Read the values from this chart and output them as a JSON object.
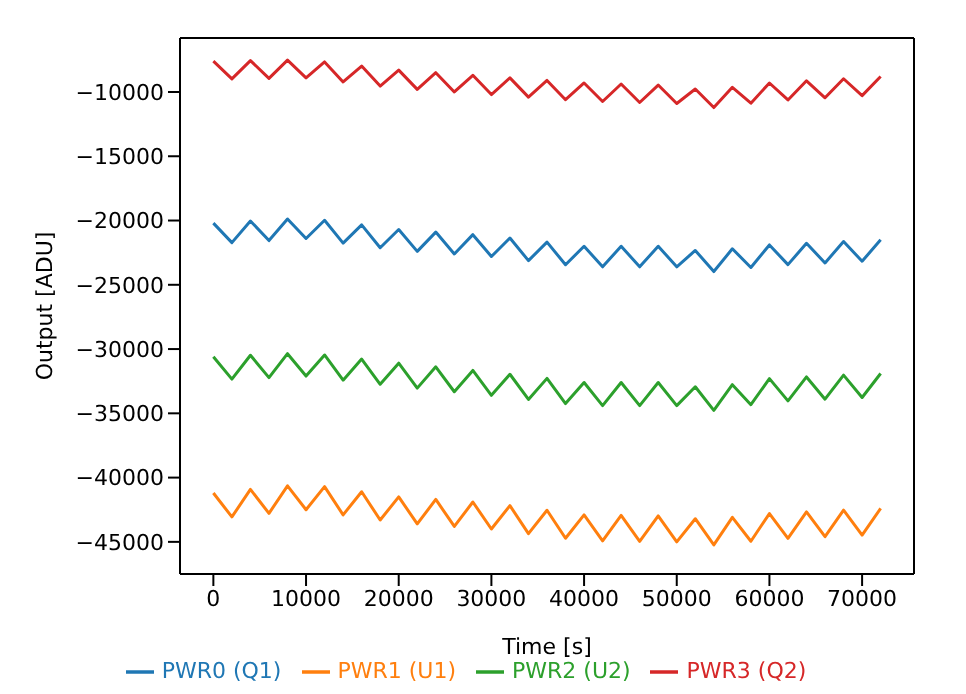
{
  "chart_data": {
    "type": "line",
    "xlabel": "Time [s]",
    "ylabel": "Output [ADU]",
    "x": [
      0,
      2000,
      4000,
      6000,
      8000,
      10000,
      12000,
      14000,
      16000,
      18000,
      20000,
      22000,
      24000,
      26000,
      28000,
      30000,
      32000,
      34000,
      36000,
      38000,
      40000,
      42000,
      44000,
      46000,
      48000,
      50000,
      52000,
      54000,
      56000,
      58000,
      60000,
      62000,
      64000,
      66000,
      68000,
      70000,
      72000
    ],
    "series": [
      {
        "name": "PWR0 (Q1)",
        "color": "#1f77b4",
        "values": [
          -20200,
          -21720,
          -20040,
          -21560,
          -19880,
          -21400,
          -19980,
          -21760,
          -20340,
          -22120,
          -20700,
          -22400,
          -20900,
          -22600,
          -21100,
          -22800,
          -21360,
          -23120,
          -21680,
          -23440,
          -22000,
          -23600,
          -22000,
          -23600,
          -22000,
          -23600,
          -22330,
          -23970,
          -22200,
          -23650,
          -21900,
          -23430,
          -21770,
          -23300,
          -21630,
          -23170,
          -21500
        ]
      },
      {
        "name": "PWR1 (U1)",
        "color": "#ff7f0e",
        "values": [
          -41200,
          -43060,
          -40920,
          -42780,
          -40640,
          -42500,
          -40700,
          -42900,
          -41100,
          -43300,
          -41500,
          -43600,
          -41700,
          -43800,
          -41900,
          -44000,
          -42180,
          -44360,
          -42540,
          -44720,
          -42900,
          -44920,
          -42940,
          -44960,
          -42980,
          -45000,
          -43200,
          -45240,
          -43090,
          -44950,
          -42800,
          -44730,
          -42670,
          -44600,
          -42530,
          -44470,
          -42400
        ]
      },
      {
        "name": "PWR2 (U2)",
        "color": "#2ca02c",
        "values": [
          -30600,
          -32340,
          -30480,
          -32220,
          -30360,
          -32100,
          -30460,
          -32420,
          -30780,
          -32740,
          -31100,
          -33040,
          -31380,
          -33320,
          -31660,
          -33600,
          -31960,
          -33920,
          -32280,
          -34240,
          -32600,
          -34400,
          -32600,
          -34400,
          -32600,
          -34400,
          -32930,
          -34770,
          -32770,
          -34330,
          -32300,
          -34030,
          -32170,
          -33900,
          -32030,
          -33770,
          -31900
        ]
      },
      {
        "name": "PWR3 (Q2)",
        "color": "#d62728",
        "values": [
          -7600,
          -8980,
          -7560,
          -8940,
          -7520,
          -8900,
          -7660,
          -9220,
          -7980,
          -9540,
          -8300,
          -9800,
          -8500,
          -10000,
          -8700,
          -10200,
          -8900,
          -10400,
          -9100,
          -10600,
          -9300,
          -10740,
          -9380,
          -10820,
          -9460,
          -10900,
          -9770,
          -11210,
          -9640,
          -10870,
          -9300,
          -10620,
          -9130,
          -10450,
          -8970,
          -10280,
          -8800
        ]
      }
    ],
    "xlim": [
      -3600,
      75600
    ],
    "xticks": [
      0,
      10000,
      20000,
      30000,
      40000,
      50000,
      60000,
      70000
    ],
    "ylim": [
      -47500,
      -5800
    ],
    "yticks": [
      -45000,
      -40000,
      -35000,
      -30000,
      -25000,
      -20000,
      -15000,
      -10000
    ],
    "grid": false,
    "legend": "bottom",
    "marker": "none",
    "line_style": "solid"
  }
}
